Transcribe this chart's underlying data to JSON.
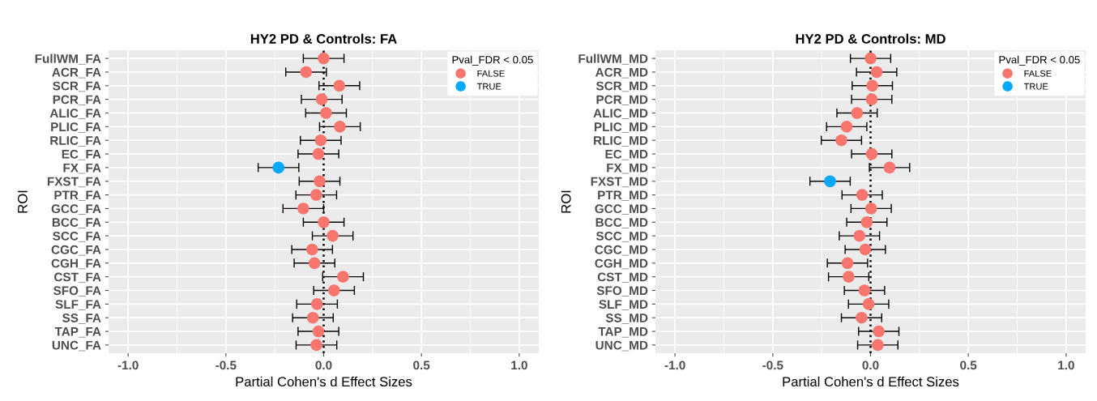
{
  "chart_data": [
    {
      "type": "scatter",
      "orientation": "horizontal",
      "title": "HY2 PD & Controls: FA",
      "xlabel": "Partial Cohen's d Effect Sizes",
      "ylabel": "ROI",
      "legend_title": "Pval_FDR < 0.05",
      "legend": "top right",
      "grid": true,
      "marker": "circle",
      "categories": [
        "FullWM_FA",
        "ACR_FA",
        "SCR_FA",
        "PCR_FA",
        "ALIC_FA",
        "PLIC_FA",
        "RLIC_FA",
        "EC_FA",
        "FX_FA",
        "FXST_FA",
        "PTR_FA",
        "GCC_FA",
        "BCC_FA",
        "SCC_FA",
        "CGC_FA",
        "CGH_FA",
        "CST_FA",
        "SFO_FA",
        "SLF_FA",
        "SS_FA",
        "TAP_FA",
        "UNC_FA"
      ],
      "xlim": [
        -1.1,
        1.1
      ],
      "xticks": [
        {
          "value": -1,
          "label": "-1.0"
        },
        {
          "value": -0.5,
          "label": "-0.5"
        },
        {
          "value": 0,
          "label": "0.0"
        },
        0.5,
        {
          "value": 1,
          "label": "1.0"
        }
      ],
      "ref_lines": [
        {
          "axis": "x",
          "value": 0,
          "color": "#000000",
          "line_style": "dotted"
        }
      ],
      "series": [
        {
          "name": "FALSE",
          "color": "#f8766d",
          "values": [
            0.0,
            -0.09,
            0.08,
            -0.01,
            0.012,
            0.083,
            -0.015,
            -0.027,
            null,
            -0.021,
            -0.038,
            -0.104,
            0.0,
            0.046,
            -0.059,
            -0.047,
            0.099,
            0.053,
            -0.034,
            -0.055,
            -0.027,
            -0.037
          ],
          "errors": [
            0.104,
            0.104,
            0.104,
            0.104,
            0.104,
            0.104,
            0.104,
            0.104,
            null,
            0.104,
            0.104,
            0.104,
            0.104,
            0.104,
            0.104,
            0.104,
            0.104,
            0.104,
            0.104,
            0.104,
            0.104,
            0.104
          ]
        },
        {
          "name": "TRUE",
          "color": "#00a9ff",
          "values": [
            null,
            null,
            null,
            null,
            null,
            null,
            null,
            null,
            -0.231,
            null,
            null,
            null,
            null,
            null,
            null,
            null,
            null,
            null,
            null,
            null,
            null,
            null
          ],
          "errors": [
            null,
            null,
            null,
            null,
            null,
            null,
            null,
            null,
            0.104,
            null,
            null,
            null,
            null,
            null,
            null,
            null,
            null,
            null,
            null,
            null,
            null,
            null
          ]
        }
      ]
    },
    {
      "type": "scatter",
      "orientation": "horizontal",
      "title": "HY2 PD & Controls: MD",
      "xlabel": "Partial Cohen's d Effect Sizes",
      "ylabel": "ROI",
      "legend_title": "Pval_FDR < 0.05",
      "legend": "top right",
      "grid": true,
      "marker": "circle",
      "categories": [
        "FullWM_MD",
        "ACR_MD",
        "SCR_MD",
        "PCR_MD",
        "ALIC_MD",
        "PLIC_MD",
        "RLIC_MD",
        "EC_MD",
        "FX_MD",
        "FXST_MD",
        "PTR_MD",
        "GCC_MD",
        "BCC_MD",
        "SCC_MD",
        "CGC_MD",
        "CGH_MD",
        "CST_MD",
        "SFO_MD",
        "SLF_MD",
        "SS_MD",
        "TAP_MD",
        "UNC_MD"
      ],
      "xlim": [
        -1.1,
        1.1
      ],
      "xticks": [
        {
          "value": -1,
          "label": "-1.0"
        },
        {
          "value": -0.5,
          "label": "-0.5"
        },
        {
          "value": 0,
          "label": "0.0"
        },
        0.5,
        {
          "value": 1,
          "label": "1.0"
        }
      ],
      "ref_lines": [
        {
          "axis": "x",
          "value": 0,
          "color": "#000000",
          "line_style": "dotted"
        }
      ],
      "series": [
        {
          "name": "FALSE",
          "color": "#f8766d",
          "values": [
            0.0,
            0.031,
            0.009,
            0.006,
            -0.069,
            -0.122,
            -0.149,
            0.006,
            0.097,
            null,
            -0.043,
            0.003,
            -0.019,
            -0.057,
            -0.027,
            -0.118,
            -0.112,
            -0.031,
            -0.01,
            -0.046,
            0.042,
            0.037
          ],
          "errors": [
            0.103,
            0.103,
            0.103,
            0.103,
            0.103,
            0.103,
            0.103,
            0.103,
            0.103,
            null,
            0.103,
            0.103,
            0.103,
            0.103,
            0.103,
            0.103,
            0.103,
            0.103,
            0.103,
            0.103,
            0.103,
            0.103
          ]
        },
        {
          "name": "TRUE",
          "color": "#00a9ff",
          "values": [
            null,
            null,
            null,
            null,
            null,
            null,
            null,
            null,
            null,
            -0.207,
            null,
            null,
            null,
            null,
            null,
            null,
            null,
            null,
            null,
            null,
            null,
            null
          ],
          "errors": [
            null,
            null,
            null,
            null,
            null,
            null,
            null,
            null,
            null,
            0.103,
            null,
            null,
            null,
            null,
            null,
            null,
            null,
            null,
            null,
            null,
            null,
            null
          ]
        }
      ]
    }
  ]
}
